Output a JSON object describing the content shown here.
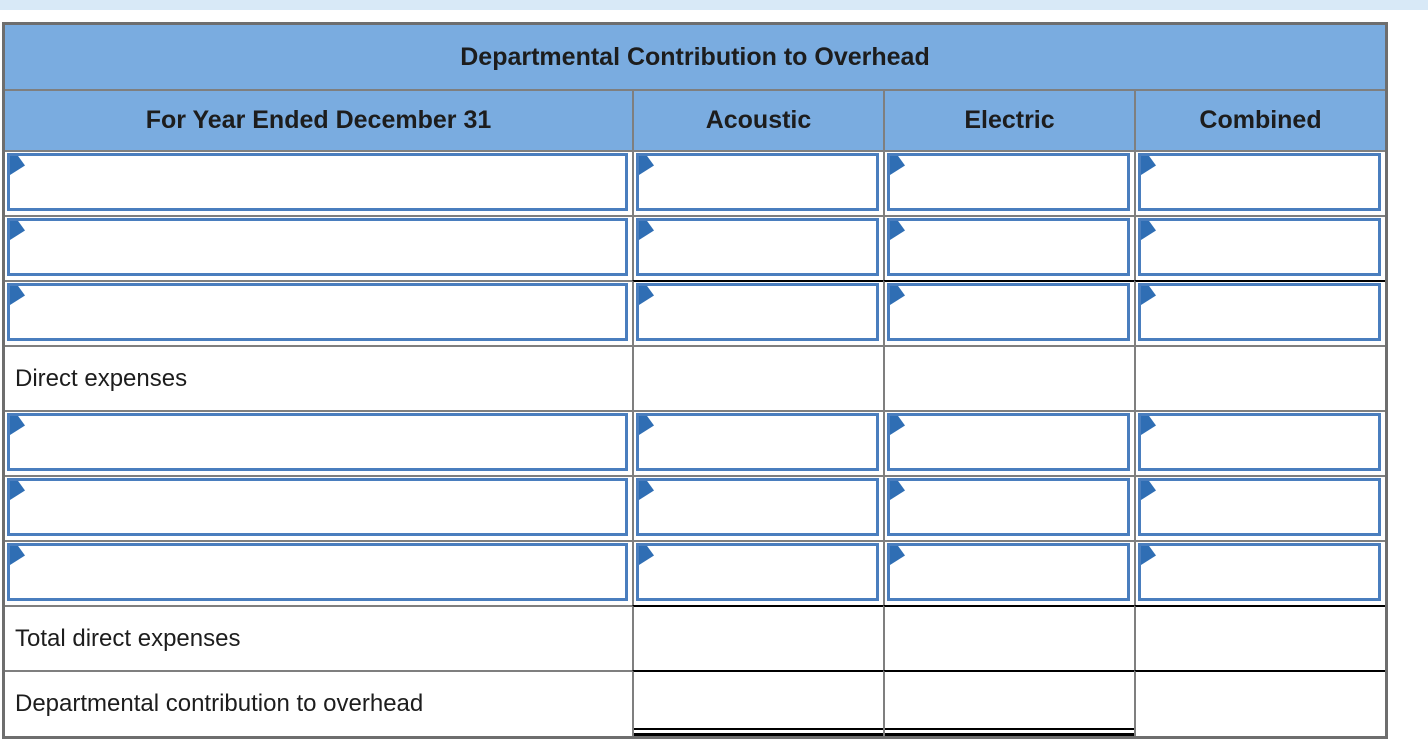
{
  "page": {
    "top_strip_color": "#d8e9f7",
    "background": "#ffffff"
  },
  "table": {
    "title": "Departmental Contribution to Overhead",
    "columns": [
      "For Year Ended December 31",
      "Acoustic",
      "Electric",
      "Combined"
    ],
    "rows": [
      {
        "kind": "input"
      },
      {
        "kind": "input"
      },
      {
        "kind": "input",
        "top_rule": "single-black-numeric-columns"
      },
      {
        "kind": "section-label",
        "label": "Direct expenses"
      },
      {
        "kind": "input"
      },
      {
        "kind": "input"
      },
      {
        "kind": "input"
      },
      {
        "kind": "total-label",
        "label": "Total direct expenses",
        "top_rule": "single-black-numeric-columns"
      },
      {
        "kind": "total-label",
        "label": "Departmental contribution to overhead",
        "top_rule": "single-black-numeric-columns",
        "bottom_rule": "double-black-under-acoustic-electric"
      }
    ],
    "colors": {
      "header_bg": "#7aace0",
      "grid_border": "#7f7f7f",
      "frame_border": "#6e6e6e",
      "input_border": "#4a7ebe",
      "flag": "#2f6eb4",
      "rule_black": "#000000",
      "top_strip": "#d8e9f7",
      "text": "#1d1d1d"
    }
  }
}
